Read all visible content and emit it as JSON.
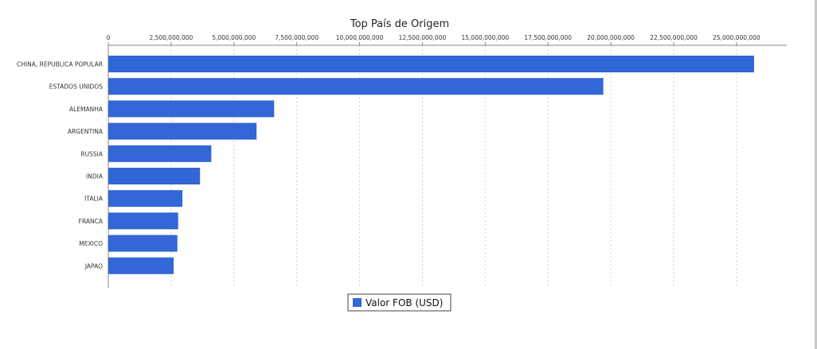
{
  "chart_data": {
    "type": "bar",
    "orientation": "horizontal",
    "title": "Top País de Origem",
    "xlabel": "",
    "ylabel": "",
    "xlim": [
      0,
      27000000
    ],
    "x_ticks": [
      0,
      2500000,
      5000000,
      7500000,
      10000000,
      12500000,
      15000000,
      17500000,
      20000000,
      22500000,
      25000000
    ],
    "x_tick_labels": [
      "0",
      "2,500,000,000",
      "5,000,000,000",
      "7,500,000,000",
      "10,000,000,000",
      "12,500,000,000",
      "15,000,000,000",
      "17,500,000,000",
      "20,000,000,000",
      "22,500,000,000",
      "25,000,000,000"
    ],
    "axis_position": "top",
    "grid": true,
    "legend_position": "bottom",
    "bar_color": "#3366d6",
    "categories": [
      "CHINA, REPUBLICA POPULAR",
      "ESTADOS UNIDOS",
      "ALEMANHA",
      "ARGENTINA",
      "RUSSIA",
      "INDIA",
      "ITALIA",
      "FRANCA",
      "MEXICO",
      "JAPAO"
    ],
    "series": [
      {
        "name": "Valor FOB (USD)",
        "values": [
          25700000,
          19700000,
          6600000,
          5900000,
          4100000,
          3650000,
          2950000,
          2780000,
          2750000,
          2600000
        ]
      }
    ]
  }
}
